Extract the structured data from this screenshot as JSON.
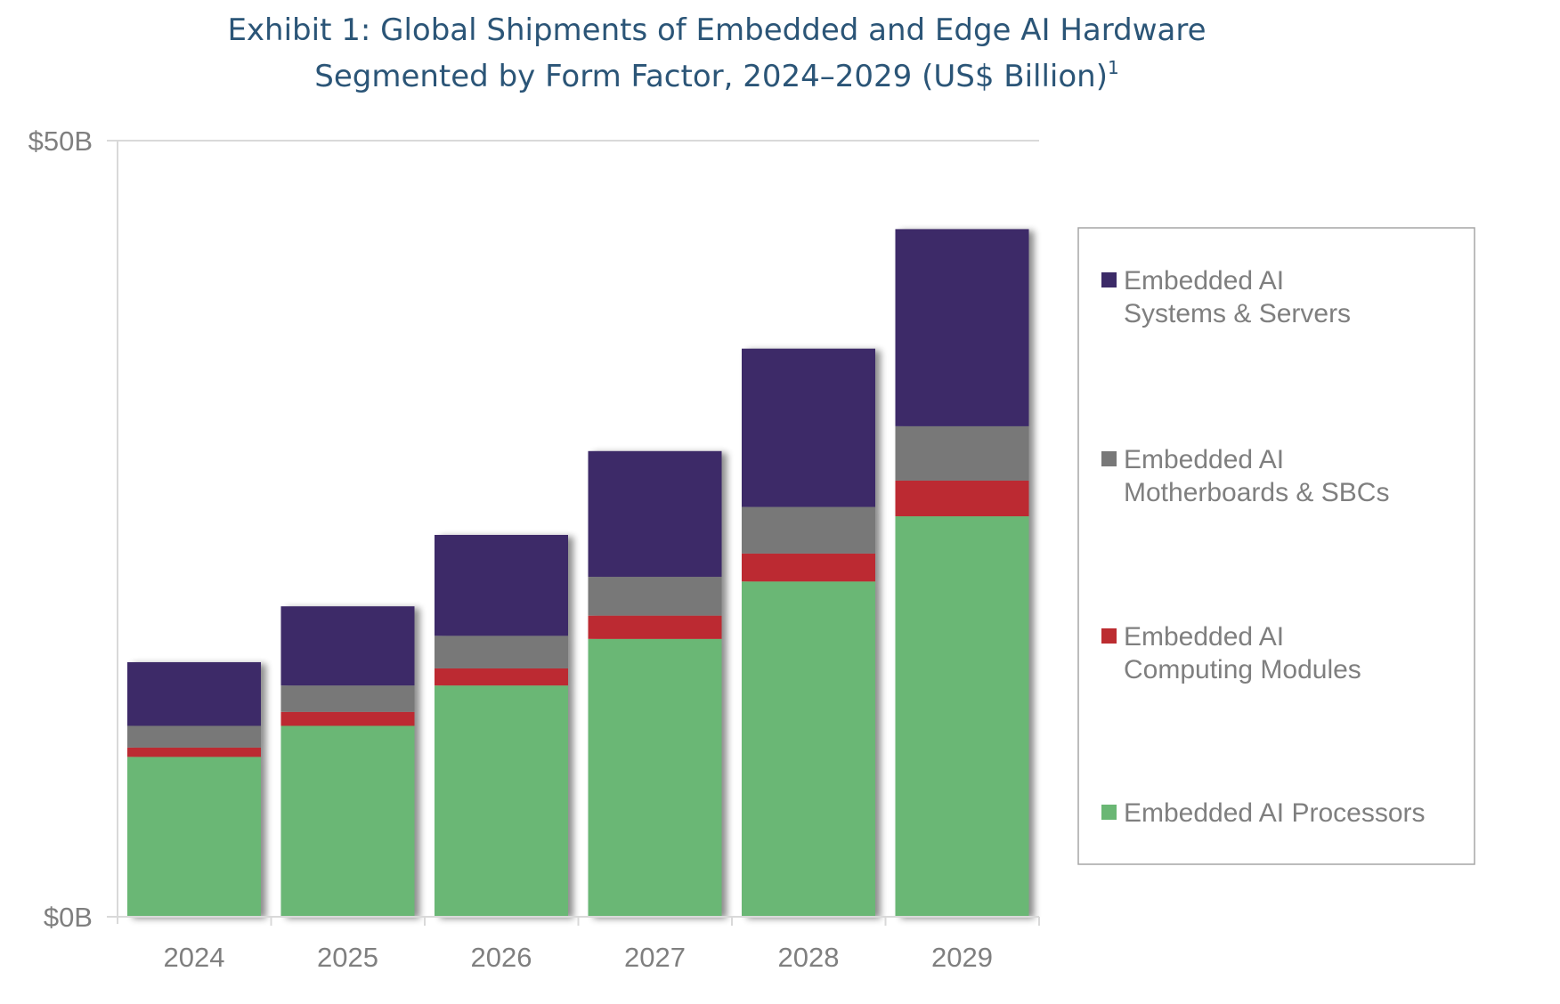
{
  "chart_data": {
    "type": "bar",
    "stacked": true,
    "title": "Exhibit 1: Global Shipments of Embedded and Edge AI Hardware",
    "subtitle": "Segmented by Form Factor, 2024–2029 (US$ Billion)",
    "subtitle_superscript": "1",
    "xlabel": "",
    "ylabel": "",
    "categories": [
      "2024",
      "2025",
      "2026",
      "2027",
      "2028",
      "2029"
    ],
    "ylim": [
      0,
      50
    ],
    "yticks": [
      {
        "value": 0,
        "label": "$0B"
      },
      {
        "value": 50,
        "label": "$50B"
      }
    ],
    "grid": true,
    "legend_position": "right",
    "series": [
      {
        "name": "Embedded AI Processors",
        "legend_lines": [
          "Embedded AI Processors"
        ],
        "color": "#6ab774",
        "values": [
          10.3,
          12.3,
          14.9,
          17.9,
          21.6,
          25.8
        ]
      },
      {
        "name": "Embedded AI Computing Modules",
        "legend_lines": [
          "Embedded AI",
          "Computing Modules"
        ],
        "color": "#bc2c30",
        "values": [
          0.6,
          0.9,
          1.1,
          1.5,
          1.8,
          2.3
        ]
      },
      {
        "name": "Embedded AI Motherboards & SBCs",
        "legend_lines": [
          "Embedded AI",
          "Motherboards & SBCs"
        ],
        "color": "#787878",
        "values": [
          1.4,
          1.7,
          2.1,
          2.5,
          3.0,
          3.5
        ]
      },
      {
        "name": "Embedded AI Systems & Servers",
        "legend_lines": [
          "Embedded AI",
          "Systems & Servers"
        ],
        "color": "#3c2b68",
        "values": [
          4.1,
          5.1,
          6.5,
          8.1,
          10.2,
          12.7
        ]
      }
    ]
  }
}
